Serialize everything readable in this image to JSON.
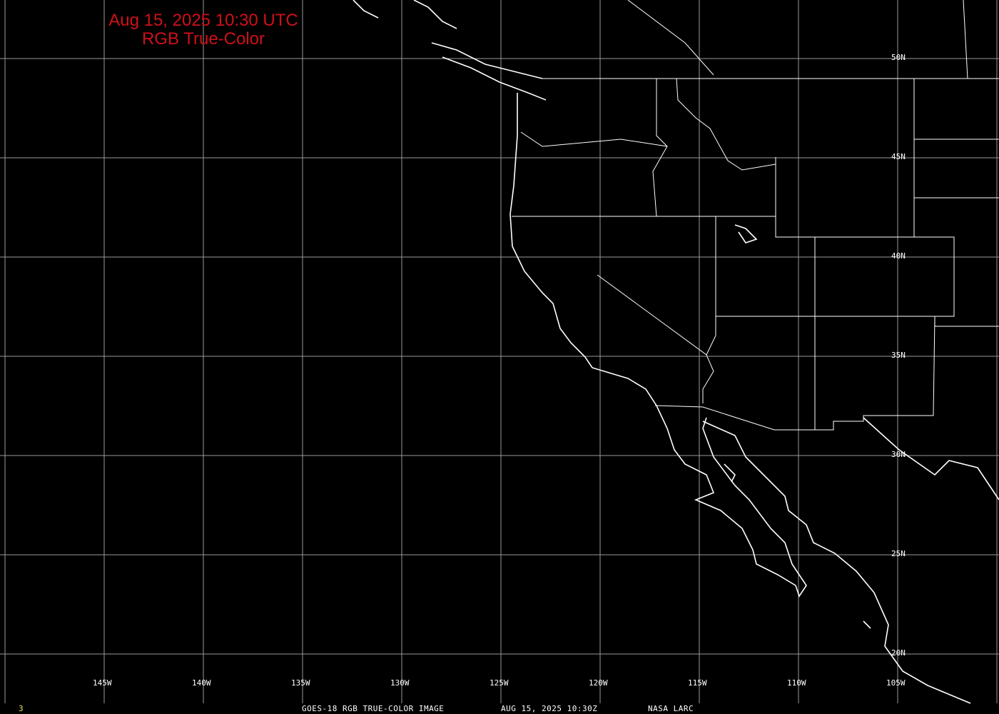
{
  "title": {
    "line1": "Aug 15, 2025 10:30 UTC",
    "line2": "RGB True-Color",
    "color": "#d0101a"
  },
  "grid": {
    "longitudes": [
      "145W",
      "140W",
      "135W",
      "130W",
      "125W",
      "120W",
      "115W",
      "110W",
      "105W"
    ],
    "latitudes": [
      "50N",
      "45N",
      "40N",
      "35N",
      "30N",
      "25N",
      "20N"
    ]
  },
  "footer": {
    "frame": "3",
    "caption": "GOES-18 RGB TRUE-COLOR IMAGE",
    "datetime": "AUG 15, 2025 10:30Z",
    "source": "NASA LARC"
  },
  "colors": {
    "background": "#000000",
    "grid": "#a0a0a0",
    "coast": "#ffffff",
    "frame_number": "#e8e060"
  }
}
